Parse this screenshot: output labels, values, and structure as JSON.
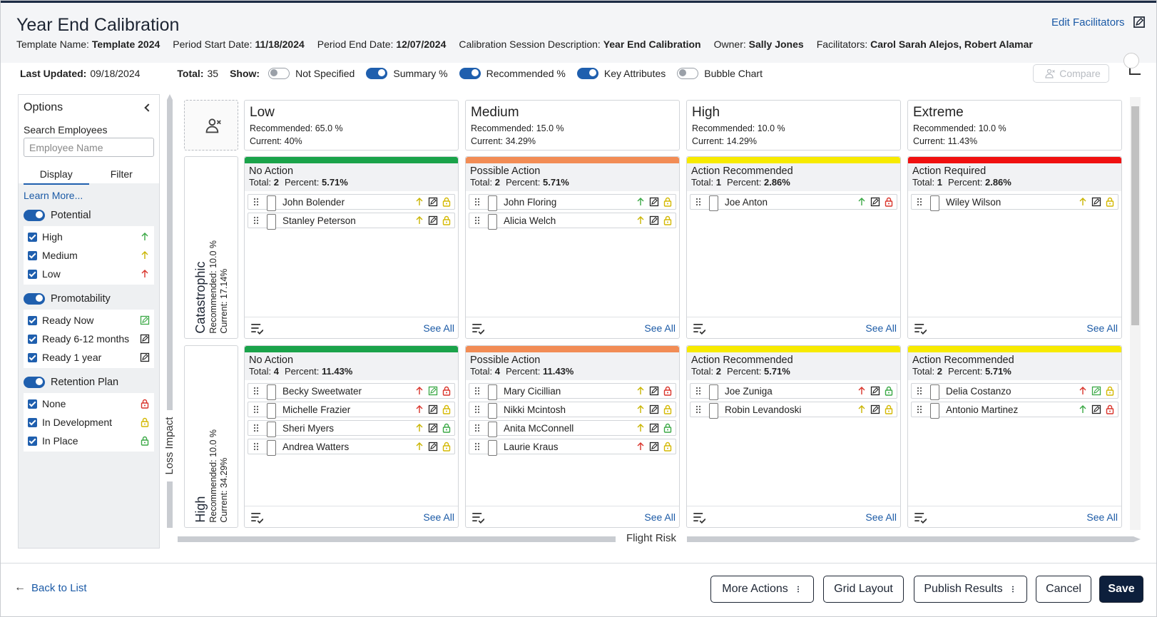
{
  "header": {
    "title": "Year End Calibration",
    "edit_facilitators": "Edit Facilitators",
    "meta": [
      {
        "label": "Template Name:",
        "value": "Template 2024"
      },
      {
        "label": "Period Start Date:",
        "value": "11/18/2024"
      },
      {
        "label": "Period End Date:",
        "value": "12/07/2024"
      },
      {
        "label": "Calibration Session Description:",
        "value": "Year End Calibration"
      },
      {
        "label": "Owner:",
        "value": "Sally Jones"
      },
      {
        "label": "Facilitators:",
        "value": "Carol Sarah Alejos, Robert Alamar"
      }
    ]
  },
  "toolbar": {
    "last_updated_label": "Last Updated:",
    "last_updated": "09/18/2024",
    "total_label": "Total:",
    "total": 35,
    "show_label": "Show:",
    "toggles": [
      {
        "label": "Not Specified",
        "on": false
      },
      {
        "label": "Summary %",
        "on": true
      },
      {
        "label": "Recommended %",
        "on": true
      },
      {
        "label": "Key Attributes",
        "on": true
      },
      {
        "label": "Bubble Chart",
        "on": false
      }
    ],
    "compare": "Compare"
  },
  "sidebar": {
    "title": "Options",
    "search_label": "Search Employees",
    "search_placeholder": "Employee Name",
    "tabs": [
      "Display",
      "Filter"
    ],
    "learn_more": "Learn More...",
    "groups": [
      {
        "name": "Potential",
        "icon": "arrow",
        "items": [
          {
            "label": "High",
            "color": "#3aa845"
          },
          {
            "label": "Medium",
            "color": "#c9b400"
          },
          {
            "label": "Low",
            "color": "#d9342b"
          }
        ]
      },
      {
        "name": "Promotability",
        "icon": "edit",
        "items": [
          {
            "label": "Ready Now",
            "color": "#3aa845"
          },
          {
            "label": "Ready 6-12 months",
            "color": "#222222"
          },
          {
            "label": "Ready 1 year",
            "color": "#222222"
          }
        ]
      },
      {
        "name": "Retention Plan",
        "icon": "lock",
        "items": [
          {
            "label": "None",
            "color": "#d9342b"
          },
          {
            "label": "In Development",
            "color": "#d4b800"
          },
          {
            "label": "In Place",
            "color": "#3aa845"
          }
        ]
      }
    ]
  },
  "grid": {
    "y_axis": "Loss Impact",
    "x_axis": "Flight Risk",
    "columns": [
      {
        "name": "Low",
        "recommended": "Recommended: 65.0 %",
        "current": "Current: 40%"
      },
      {
        "name": "Medium",
        "recommended": "Recommended: 15.0 %",
        "current": "Current: 34.29%"
      },
      {
        "name": "High",
        "recommended": "Recommended: 10.0 %",
        "current": "Current: 14.29%"
      },
      {
        "name": "Extreme",
        "recommended": "Recommended: 10.0 %",
        "current": "Current: 11.43%"
      }
    ],
    "rows": [
      {
        "name": "Catastrophic",
        "recommended": "Recommended: 10.0 %",
        "current": "Current: 17.14%"
      },
      {
        "name": "High",
        "recommended": "Recommended: 10.0 %",
        "current": "Current: 34.29%"
      }
    ],
    "cells": [
      [
        {
          "title": "No Action",
          "color": "#1aa34a",
          "total_label": "Total:",
          "total": 2,
          "percent_label": "Percent:",
          "percent": "5.71%",
          "see_all": "See All",
          "employees": [
            {
              "name": "John Bolender",
              "arrow": "#c9b400",
              "edit": "#222222",
              "lock": "#d4b800"
            },
            {
              "name": "Stanley Peterson",
              "arrow": "#c9b400",
              "edit": "#222222",
              "lock": "#d4b800"
            }
          ]
        },
        {
          "title": "Possible Action",
          "color": "#f28c55",
          "total_label": "Total:",
          "total": 2,
          "percent_label": "Percent:",
          "percent": "5.71%",
          "see_all": "See All",
          "employees": [
            {
              "name": "John Floring",
              "arrow": "#3aa845",
              "edit": "#222222",
              "lock": "#d4b800"
            },
            {
              "name": "Alicia Welch",
              "arrow": "#c9b400",
              "edit": "#222222",
              "lock": "#d4b800"
            }
          ]
        },
        {
          "title": "Action Recommended",
          "color": "#f7ea00",
          "total_label": "Total:",
          "total": 1,
          "percent_label": "Percent:",
          "percent": "2.86%",
          "see_all": "See All",
          "employees": [
            {
              "name": "Joe Anton",
              "arrow": "#3aa845",
              "edit": "#222222",
              "lock": "#d9342b"
            }
          ]
        },
        {
          "title": "Action Required",
          "color": "#f01010",
          "total_label": "Total:",
          "total": 1,
          "percent_label": "Percent:",
          "percent": "2.86%",
          "see_all": "See All",
          "employees": [
            {
              "name": "Wiley Wilson",
              "arrow": "#c9b400",
              "edit": "#222222",
              "lock": "#d4b800"
            }
          ]
        }
      ],
      [
        {
          "title": "No Action",
          "color": "#1aa34a",
          "total_label": "Total:",
          "total": 4,
          "percent_label": "Percent:",
          "percent": "11.43%",
          "see_all": "See All",
          "employees": [
            {
              "name": "Becky Sweetwater",
              "arrow": "#d9342b",
              "edit": "#3aa845",
              "lock": "#d9342b"
            },
            {
              "name": "Michelle Frazier",
              "arrow": "#d9342b",
              "edit": "#222222",
              "lock": "#d4b800"
            },
            {
              "name": "Sheri Myers",
              "arrow": "#c9b400",
              "edit": "#222222",
              "lock": "#3aa845"
            },
            {
              "name": "Andrea Watters",
              "arrow": "#c9b400",
              "edit": "#222222",
              "lock": "#d4b800"
            }
          ]
        },
        {
          "title": "Possible Action",
          "color": "#f28c55",
          "total_label": "Total:",
          "total": 4,
          "percent_label": "Percent:",
          "percent": "11.43%",
          "see_all": "See All",
          "employees": [
            {
              "name": "Mary Cicillian",
              "arrow": "#c9b400",
              "edit": "#222222",
              "lock": "#d9342b"
            },
            {
              "name": "Nikki Mcintosh",
              "arrow": "#c9b400",
              "edit": "#222222",
              "lock": "#d4b800"
            },
            {
              "name": "Anita McConnell",
              "arrow": "#c9b400",
              "edit": "#222222",
              "lock": "#3aa845"
            },
            {
              "name": "Laurie Kraus",
              "arrow": "#d9342b",
              "edit": "#222222",
              "lock": "#d4b800"
            }
          ]
        },
        {
          "title": "Action Recommended",
          "color": "#f7ea00",
          "total_label": "Total:",
          "total": 2,
          "percent_label": "Percent:",
          "percent": "5.71%",
          "see_all": "See All",
          "employees": [
            {
              "name": "Joe Zuniga",
              "arrow": "#d9342b",
              "edit": "#222222",
              "lock": "#3aa845"
            },
            {
              "name": "Robin Levandoski",
              "arrow": "#c9b400",
              "edit": "#222222",
              "lock": "#d4b800"
            }
          ]
        },
        {
          "title": "Action Recommended",
          "color": "#f7ea00",
          "total_label": "Total:",
          "total": 2,
          "percent_label": "Percent:",
          "percent": "5.71%",
          "see_all": "See All",
          "employees": [
            {
              "name": "Delia Costanzo",
              "arrow": "#d9342b",
              "edit": "#3aa845",
              "lock": "#d4b800"
            },
            {
              "name": "Antonio Martinez",
              "arrow": "#3aa845",
              "edit": "#222222",
              "lock": "#d9342b"
            }
          ]
        }
      ]
    ]
  },
  "footer": {
    "back": "Back to List",
    "buttons": [
      "More Actions",
      "Grid Layout",
      "Publish Results",
      "Cancel",
      "Save"
    ]
  }
}
